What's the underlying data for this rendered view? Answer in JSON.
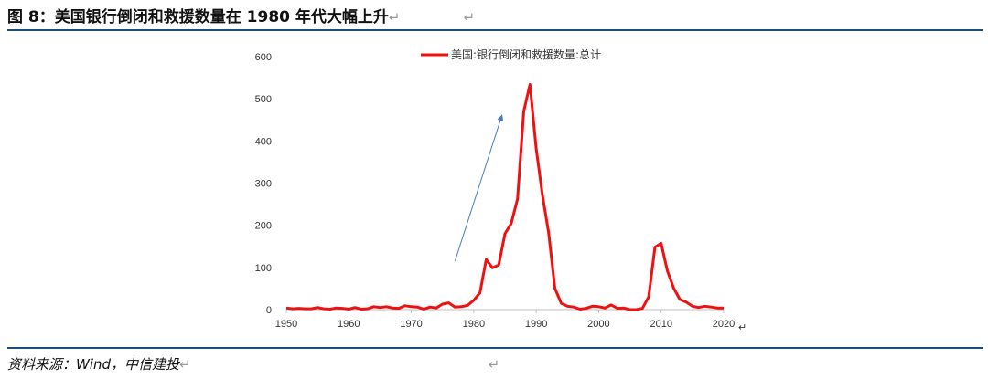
{
  "header": {
    "figure_title": "图 8：美国银行倒闭和救援数量在 1980 年代大幅上升",
    "return_mark": "↵"
  },
  "footer": {
    "source": "资料来源：Wind，中信建投",
    "return_mark": "↵"
  },
  "colors": {
    "series": "#ee1111",
    "rule": "#1f4e79",
    "arrow": "#4a78c0",
    "axis": "#bfbfbf"
  },
  "chart_data": {
    "type": "line",
    "title": "",
    "xlabel": "",
    "ylabel": "",
    "xlim": [
      1950,
      2020
    ],
    "ylim": [
      0,
      600
    ],
    "x_ticks": [
      1950,
      1960,
      1970,
      1980,
      1990,
      2000,
      2010,
      2020
    ],
    "y_ticks": [
      0,
      100,
      200,
      300,
      400,
      500,
      600
    ],
    "legend": "top",
    "grid": false,
    "annotations": [
      {
        "type": "arrow",
        "from": [
          1977,
          115
        ],
        "to": [
          1984.5,
          460
        ]
      }
    ],
    "series": [
      {
        "name": "美国:银行倒闭和救援数量:总计",
        "x": [
          1950,
          1951,
          1952,
          1953,
          1954,
          1955,
          1956,
          1957,
          1958,
          1959,
          1960,
          1961,
          1962,
          1963,
          1964,
          1965,
          1966,
          1967,
          1968,
          1969,
          1970,
          1971,
          1972,
          1973,
          1974,
          1975,
          1976,
          1977,
          1978,
          1979,
          1980,
          1981,
          1982,
          1983,
          1984,
          1985,
          1986,
          1987,
          1988,
          1989,
          1990,
          1991,
          1992,
          1993,
          1994,
          1995,
          1996,
          1997,
          1998,
          1999,
          2000,
          2001,
          2002,
          2003,
          2004,
          2005,
          2006,
          2007,
          2008,
          2009,
          2010,
          2011,
          2012,
          2013,
          2014,
          2015,
          2016,
          2017,
          2018,
          2019,
          2020
        ],
        "values": [
          4,
          2,
          3,
          2,
          2,
          5,
          2,
          1,
          4,
          3,
          1,
          5,
          1,
          2,
          7,
          5,
          7,
          4,
          3,
          9,
          7,
          6,
          1,
          6,
          4,
          13,
          16,
          6,
          7,
          10,
          22,
          40,
          119,
          99,
          106,
          180,
          204,
          262,
          470,
          534,
          382,
          271,
          181,
          50,
          15,
          8,
          6,
          1,
          3,
          8,
          7,
          4,
          11,
          3,
          4,
          0,
          0,
          3,
          30,
          148,
          157,
          92,
          51,
          24,
          18,
          8,
          5,
          8,
          6,
          4,
          4
        ]
      }
    ]
  }
}
